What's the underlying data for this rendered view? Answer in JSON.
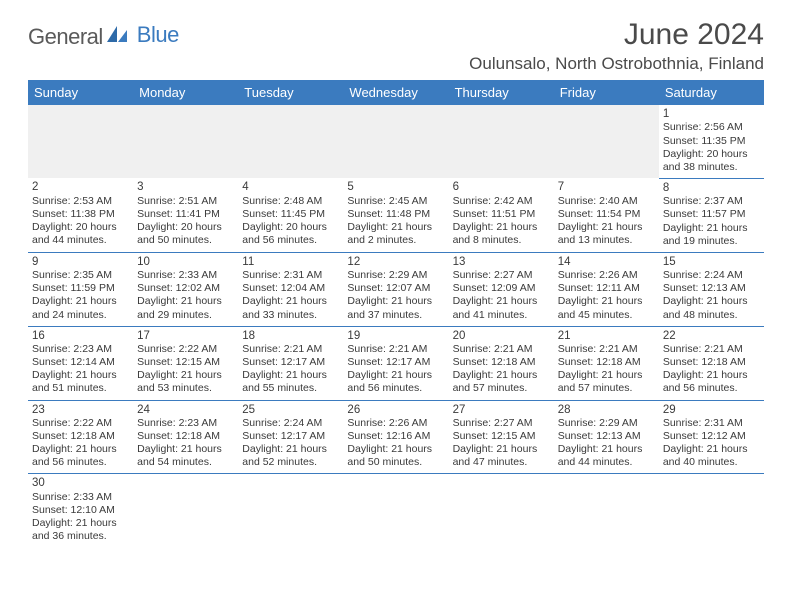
{
  "logo": {
    "part1": "General",
    "part2": "Blue"
  },
  "title": "June 2024",
  "location": "Oulunsalo, North Ostrobothnia, Finland",
  "colors": {
    "header_bg": "#3b7bbf",
    "header_fg": "#ffffff",
    "cell_border": "#3b7bbf",
    "blank_bg": "#f0f0f0",
    "text": "#3a3a3a",
    "logo_blue": "#3b7bbf",
    "logo_gray": "#5a5a5a"
  },
  "dayHeaders": [
    "Sunday",
    "Monday",
    "Tuesday",
    "Wednesday",
    "Thursday",
    "Friday",
    "Saturday"
  ],
  "weeks": [
    [
      null,
      null,
      null,
      null,
      null,
      null,
      {
        "n": "1",
        "sr": "Sunrise: 2:56 AM",
        "ss": "Sunset: 11:35 PM",
        "d1": "Daylight: 20 hours",
        "d2": "and 38 minutes."
      }
    ],
    [
      {
        "n": "2",
        "sr": "Sunrise: 2:53 AM",
        "ss": "Sunset: 11:38 PM",
        "d1": "Daylight: 20 hours",
        "d2": "and 44 minutes."
      },
      {
        "n": "3",
        "sr": "Sunrise: 2:51 AM",
        "ss": "Sunset: 11:41 PM",
        "d1": "Daylight: 20 hours",
        "d2": "and 50 minutes."
      },
      {
        "n": "4",
        "sr": "Sunrise: 2:48 AM",
        "ss": "Sunset: 11:45 PM",
        "d1": "Daylight: 20 hours",
        "d2": "and 56 minutes."
      },
      {
        "n": "5",
        "sr": "Sunrise: 2:45 AM",
        "ss": "Sunset: 11:48 PM",
        "d1": "Daylight: 21 hours",
        "d2": "and 2 minutes."
      },
      {
        "n": "6",
        "sr": "Sunrise: 2:42 AM",
        "ss": "Sunset: 11:51 PM",
        "d1": "Daylight: 21 hours",
        "d2": "and 8 minutes."
      },
      {
        "n": "7",
        "sr": "Sunrise: 2:40 AM",
        "ss": "Sunset: 11:54 PM",
        "d1": "Daylight: 21 hours",
        "d2": "and 13 minutes."
      },
      {
        "n": "8",
        "sr": "Sunrise: 2:37 AM",
        "ss": "Sunset: 11:57 PM",
        "d1": "Daylight: 21 hours",
        "d2": "and 19 minutes."
      }
    ],
    [
      {
        "n": "9",
        "sr": "Sunrise: 2:35 AM",
        "ss": "Sunset: 11:59 PM",
        "d1": "Daylight: 21 hours",
        "d2": "and 24 minutes."
      },
      {
        "n": "10",
        "sr": "Sunrise: 2:33 AM",
        "ss": "Sunset: 12:02 AM",
        "d1": "Daylight: 21 hours",
        "d2": "and 29 minutes."
      },
      {
        "n": "11",
        "sr": "Sunrise: 2:31 AM",
        "ss": "Sunset: 12:04 AM",
        "d1": "Daylight: 21 hours",
        "d2": "and 33 minutes."
      },
      {
        "n": "12",
        "sr": "Sunrise: 2:29 AM",
        "ss": "Sunset: 12:07 AM",
        "d1": "Daylight: 21 hours",
        "d2": "and 37 minutes."
      },
      {
        "n": "13",
        "sr": "Sunrise: 2:27 AM",
        "ss": "Sunset: 12:09 AM",
        "d1": "Daylight: 21 hours",
        "d2": "and 41 minutes."
      },
      {
        "n": "14",
        "sr": "Sunrise: 2:26 AM",
        "ss": "Sunset: 12:11 AM",
        "d1": "Daylight: 21 hours",
        "d2": "and 45 minutes."
      },
      {
        "n": "15",
        "sr": "Sunrise: 2:24 AM",
        "ss": "Sunset: 12:13 AM",
        "d1": "Daylight: 21 hours",
        "d2": "and 48 minutes."
      }
    ],
    [
      {
        "n": "16",
        "sr": "Sunrise: 2:23 AM",
        "ss": "Sunset: 12:14 AM",
        "d1": "Daylight: 21 hours",
        "d2": "and 51 minutes."
      },
      {
        "n": "17",
        "sr": "Sunrise: 2:22 AM",
        "ss": "Sunset: 12:15 AM",
        "d1": "Daylight: 21 hours",
        "d2": "and 53 minutes."
      },
      {
        "n": "18",
        "sr": "Sunrise: 2:21 AM",
        "ss": "Sunset: 12:17 AM",
        "d1": "Daylight: 21 hours",
        "d2": "and 55 minutes."
      },
      {
        "n": "19",
        "sr": "Sunrise: 2:21 AM",
        "ss": "Sunset: 12:17 AM",
        "d1": "Daylight: 21 hours",
        "d2": "and 56 minutes."
      },
      {
        "n": "20",
        "sr": "Sunrise: 2:21 AM",
        "ss": "Sunset: 12:18 AM",
        "d1": "Daylight: 21 hours",
        "d2": "and 57 minutes."
      },
      {
        "n": "21",
        "sr": "Sunrise: 2:21 AM",
        "ss": "Sunset: 12:18 AM",
        "d1": "Daylight: 21 hours",
        "d2": "and 57 minutes."
      },
      {
        "n": "22",
        "sr": "Sunrise: 2:21 AM",
        "ss": "Sunset: 12:18 AM",
        "d1": "Daylight: 21 hours",
        "d2": "and 56 minutes."
      }
    ],
    [
      {
        "n": "23",
        "sr": "Sunrise: 2:22 AM",
        "ss": "Sunset: 12:18 AM",
        "d1": "Daylight: 21 hours",
        "d2": "and 56 minutes."
      },
      {
        "n": "24",
        "sr": "Sunrise: 2:23 AM",
        "ss": "Sunset: 12:18 AM",
        "d1": "Daylight: 21 hours",
        "d2": "and 54 minutes."
      },
      {
        "n": "25",
        "sr": "Sunrise: 2:24 AM",
        "ss": "Sunset: 12:17 AM",
        "d1": "Daylight: 21 hours",
        "d2": "and 52 minutes."
      },
      {
        "n": "26",
        "sr": "Sunrise: 2:26 AM",
        "ss": "Sunset: 12:16 AM",
        "d1": "Daylight: 21 hours",
        "d2": "and 50 minutes."
      },
      {
        "n": "27",
        "sr": "Sunrise: 2:27 AM",
        "ss": "Sunset: 12:15 AM",
        "d1": "Daylight: 21 hours",
        "d2": "and 47 minutes."
      },
      {
        "n": "28",
        "sr": "Sunrise: 2:29 AM",
        "ss": "Sunset: 12:13 AM",
        "d1": "Daylight: 21 hours",
        "d2": "and 44 minutes."
      },
      {
        "n": "29",
        "sr": "Sunrise: 2:31 AM",
        "ss": "Sunset: 12:12 AM",
        "d1": "Daylight: 21 hours",
        "d2": "and 40 minutes."
      }
    ],
    [
      {
        "n": "30",
        "sr": "Sunrise: 2:33 AM",
        "ss": "Sunset: 12:10 AM",
        "d1": "Daylight: 21 hours",
        "d2": "and 36 minutes."
      },
      null,
      null,
      null,
      null,
      null,
      null
    ]
  ]
}
